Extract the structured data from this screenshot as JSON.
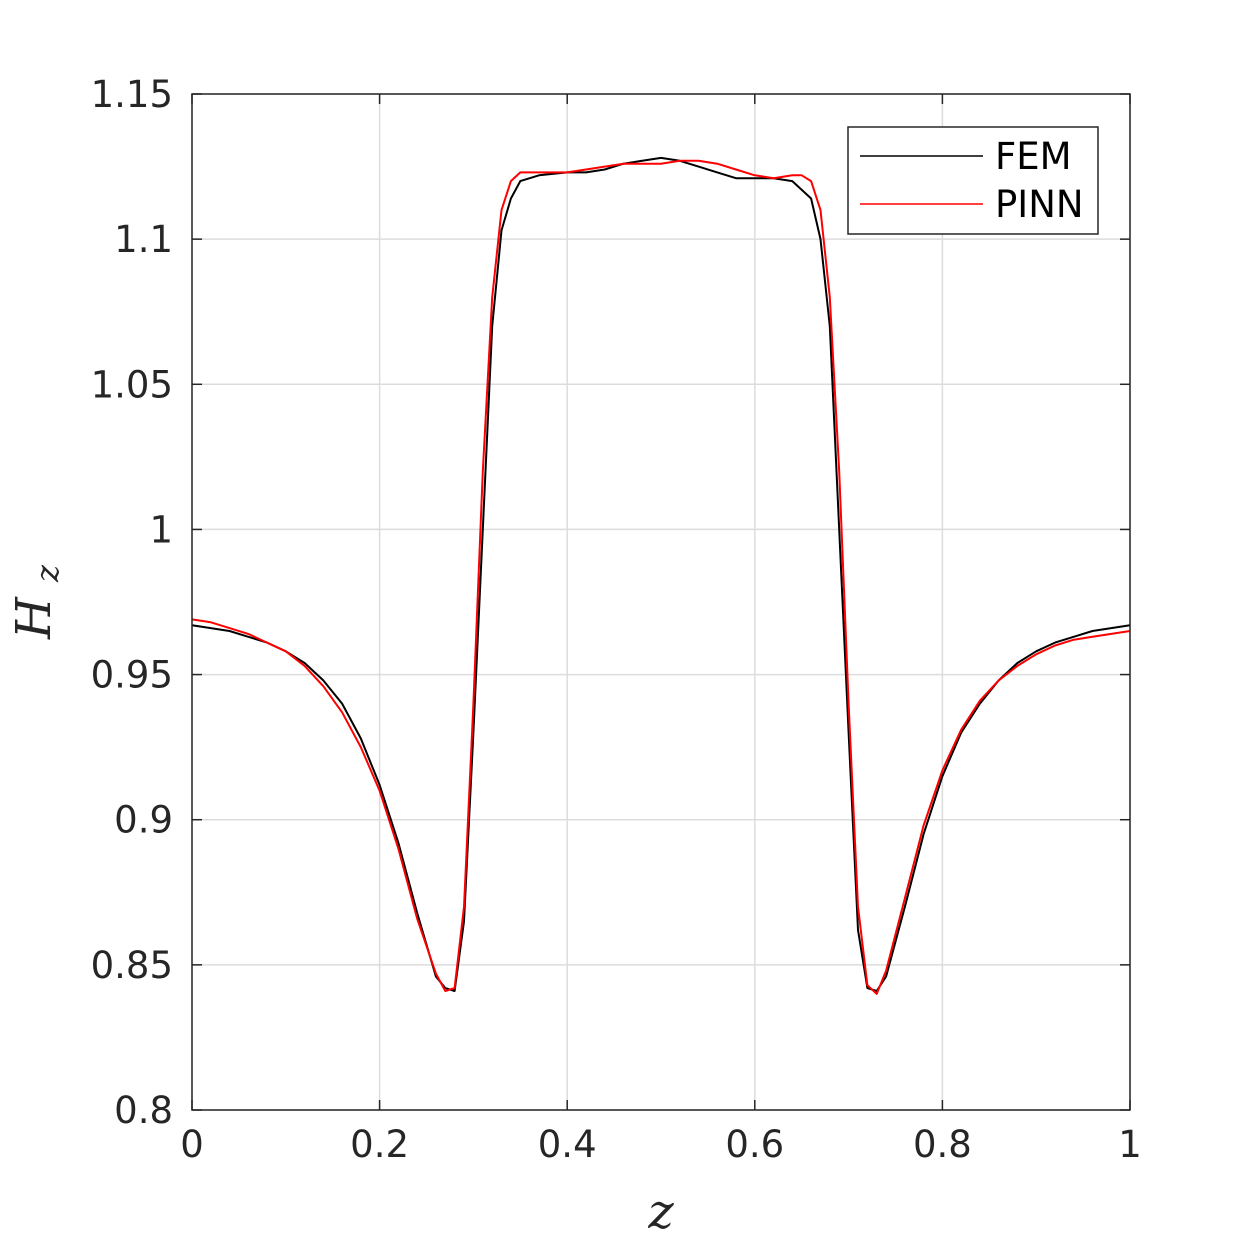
{
  "chart_data": {
    "type": "line",
    "xlabel_main": "z",
    "ylabel_main": "H",
    "ylabel_sub": "z",
    "xlim": [
      0,
      1
    ],
    "ylim": [
      0.8,
      1.15
    ],
    "x_ticks": [
      0,
      0.2,
      0.4,
      0.6,
      0.8,
      1
    ],
    "x_tick_labels": [
      "0",
      "0.2",
      "0.4",
      "0.6",
      "0.8",
      "1"
    ],
    "y_ticks": [
      0.8,
      0.85,
      0.9,
      0.95,
      1,
      1.05,
      1.1,
      1.15
    ],
    "y_tick_labels": [
      "0.8",
      "0.85",
      "0.9",
      "0.95",
      "1",
      "1.05",
      "1.1",
      "1.15"
    ],
    "grid": true,
    "legend_position": "top-right",
    "series": [
      {
        "name": "FEM",
        "color": "#000000",
        "x": [
          0,
          0.02,
          0.04,
          0.06,
          0.08,
          0.1,
          0.12,
          0.14,
          0.16,
          0.18,
          0.2,
          0.22,
          0.24,
          0.26,
          0.27,
          0.28,
          0.29,
          0.3,
          0.31,
          0.32,
          0.33,
          0.34,
          0.35,
          0.37,
          0.4,
          0.42,
          0.44,
          0.46,
          0.48,
          0.5,
          0.52,
          0.54,
          0.56,
          0.58,
          0.6,
          0.62,
          0.64,
          0.66,
          0.67,
          0.68,
          0.69,
          0.7,
          0.71,
          0.72,
          0.73,
          0.74,
          0.76,
          0.78,
          0.8,
          0.82,
          0.84,
          0.86,
          0.88,
          0.9,
          0.92,
          0.94,
          0.96,
          0.98,
          1.0
        ],
        "y": [
          0.967,
          0.966,
          0.965,
          0.963,
          0.961,
          0.958,
          0.954,
          0.948,
          0.94,
          0.928,
          0.912,
          0.892,
          0.868,
          0.846,
          0.842,
          0.841,
          0.865,
          0.93,
          1.0,
          1.07,
          1.103,
          1.114,
          1.12,
          1.122,
          1.123,
          1.123,
          1.124,
          1.126,
          1.127,
          1.128,
          1.127,
          1.125,
          1.123,
          1.121,
          1.121,
          1.121,
          1.12,
          1.114,
          1.1,
          1.07,
          1.0,
          0.93,
          0.862,
          0.842,
          0.841,
          0.846,
          0.87,
          0.895,
          0.915,
          0.93,
          0.94,
          0.948,
          0.954,
          0.958,
          0.961,
          0.963,
          0.965,
          0.966,
          0.967
        ]
      },
      {
        "name": "PINN",
        "color": "#ff0000",
        "x": [
          0,
          0.02,
          0.04,
          0.06,
          0.08,
          0.1,
          0.12,
          0.14,
          0.16,
          0.18,
          0.2,
          0.22,
          0.24,
          0.26,
          0.27,
          0.28,
          0.29,
          0.3,
          0.31,
          0.32,
          0.33,
          0.34,
          0.35,
          0.36,
          0.38,
          0.4,
          0.42,
          0.44,
          0.46,
          0.48,
          0.5,
          0.52,
          0.54,
          0.56,
          0.58,
          0.6,
          0.62,
          0.64,
          0.65,
          0.66,
          0.67,
          0.68,
          0.69,
          0.7,
          0.71,
          0.72,
          0.73,
          0.74,
          0.76,
          0.78,
          0.8,
          0.82,
          0.84,
          0.86,
          0.88,
          0.9,
          0.92,
          0.94,
          0.96,
          0.98,
          1.0
        ],
        "y": [
          0.969,
          0.968,
          0.966,
          0.964,
          0.961,
          0.958,
          0.953,
          0.946,
          0.937,
          0.925,
          0.91,
          0.89,
          0.866,
          0.847,
          0.841,
          0.842,
          0.87,
          0.94,
          1.02,
          1.08,
          1.11,
          1.12,
          1.123,
          1.123,
          1.123,
          1.123,
          1.124,
          1.125,
          1.126,
          1.126,
          1.126,
          1.127,
          1.127,
          1.126,
          1.124,
          1.122,
          1.121,
          1.122,
          1.122,
          1.12,
          1.11,
          1.08,
          1.02,
          0.94,
          0.87,
          0.843,
          0.84,
          0.848,
          0.873,
          0.898,
          0.917,
          0.931,
          0.941,
          0.948,
          0.953,
          0.957,
          0.96,
          0.962,
          0.963,
          0.964,
          0.965
        ]
      }
    ]
  }
}
